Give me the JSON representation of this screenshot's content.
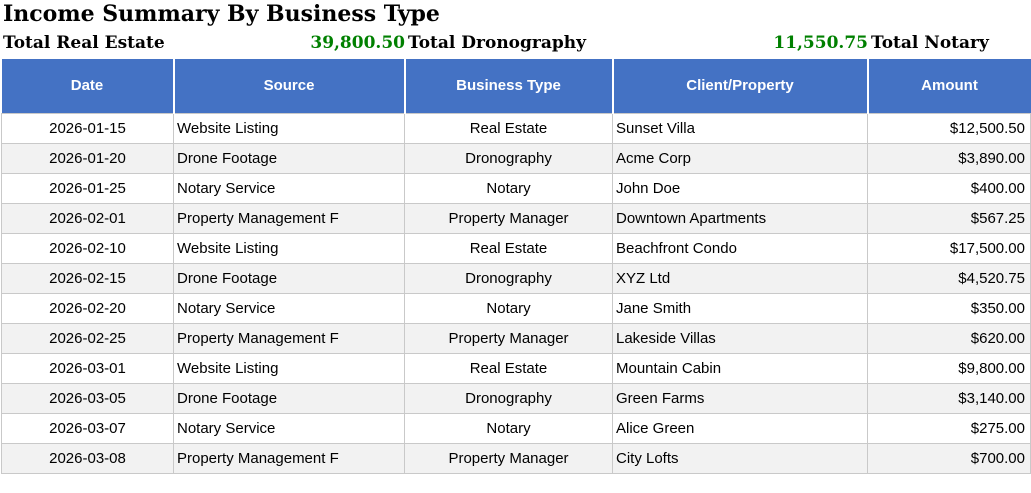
{
  "title": "Income Summary By Business Type",
  "totals": [
    {
      "label": "Total Real Estate",
      "value": "39,800.50"
    },
    {
      "label": "Total Dronography",
      "value": "11,550.75"
    },
    {
      "label": "Total Notary",
      "value": ""
    }
  ],
  "colors": {
    "header_bg": "#4472C4",
    "header_text": "#ffffff",
    "row_stripe": "#f2f2f2",
    "total_value_green": "#008000",
    "border": "#c9c9c9"
  },
  "table": {
    "columns": [
      "Date",
      "Source",
      "Business Type",
      "Client/Property",
      "Amount"
    ],
    "rows": [
      [
        "2026-01-15",
        "Website Listing",
        "Real Estate",
        "Sunset Villa",
        "$12,500.50"
      ],
      [
        "2026-01-20",
        "Drone Footage",
        "Dronography",
        "Acme Corp",
        "$3,890.00"
      ],
      [
        "2026-01-25",
        "Notary Service",
        "Notary",
        "John Doe",
        "$400.00"
      ],
      [
        "2026-02-01",
        "Property Management F",
        "Property Manager",
        "Downtown Apartments",
        "$567.25"
      ],
      [
        "2026-02-10",
        "Website Listing",
        "Real Estate",
        "Beachfront Condo",
        "$17,500.00"
      ],
      [
        "2026-02-15",
        "Drone Footage",
        "Dronography",
        "XYZ Ltd",
        "$4,520.75"
      ],
      [
        "2026-02-20",
        "Notary Service",
        "Notary",
        "Jane Smith",
        "$350.00"
      ],
      [
        "2026-02-25",
        "Property Management F",
        "Property Manager",
        "Lakeside Villas",
        "$620.00"
      ],
      [
        "2026-03-01",
        "Website Listing",
        "Real Estate",
        "Mountain Cabin",
        "$9,800.00"
      ],
      [
        "2026-03-05",
        "Drone Footage",
        "Dronography",
        "Green Farms",
        "$3,140.00"
      ],
      [
        "2026-03-07",
        "Notary Service",
        "Notary",
        "Alice Green",
        "$275.00"
      ],
      [
        "2026-03-08",
        "Property Management F",
        "Property Manager",
        "City Lofts",
        "$700.00"
      ]
    ]
  }
}
